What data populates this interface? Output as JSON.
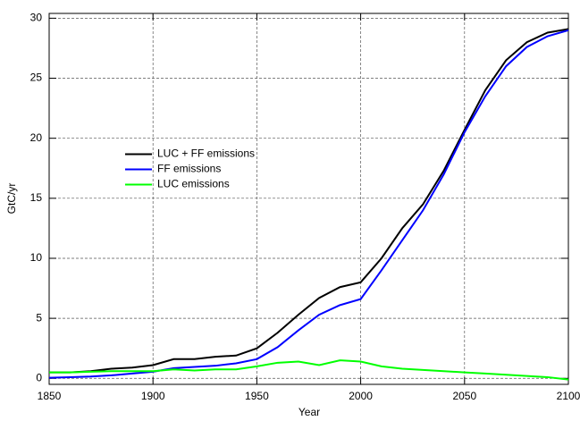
{
  "chart_data": {
    "type": "line",
    "x_label": "Year",
    "y_label": "GtC/yr",
    "x": [
      1850,
      1860,
      1870,
      1880,
      1890,
      1900,
      1910,
      1920,
      1930,
      1940,
      1950,
      1960,
      1970,
      1980,
      1990,
      2000,
      2010,
      2020,
      2030,
      2040,
      2050,
      2060,
      2070,
      2080,
      2090,
      2100
    ],
    "series": [
      {
        "name": "LUC + FF emissions",
        "color": "#000000",
        "values": [
          0.5,
          0.5,
          0.6,
          0.8,
          0.9,
          1.1,
          1.6,
          1.6,
          1.8,
          1.9,
          2.5,
          3.8,
          5.3,
          6.7,
          7.6,
          8.0,
          10.0,
          12.5,
          14.5,
          17.3,
          20.7,
          24.0,
          26.5,
          28.0,
          28.8,
          29.1
        ]
      },
      {
        "name": "FF emissions",
        "color": "#0000ff",
        "values": [
          0.05,
          0.1,
          0.15,
          0.25,
          0.4,
          0.55,
          0.85,
          0.95,
          1.05,
          1.25,
          1.6,
          2.6,
          4.0,
          5.3,
          6.1,
          6.6,
          9.0,
          11.5,
          14.0,
          17.0,
          20.5,
          23.5,
          26.0,
          27.6,
          28.5,
          29.0
        ]
      },
      {
        "name": "LUC emissions",
        "color": "#00ff00",
        "values": [
          0.5,
          0.5,
          0.55,
          0.6,
          0.6,
          0.6,
          0.75,
          0.65,
          0.75,
          0.75,
          1.0,
          1.3,
          1.4,
          1.1,
          1.5,
          1.4,
          1.0,
          0.8,
          0.7,
          0.6,
          0.5,
          0.4,
          0.3,
          0.2,
          0.1,
          -0.1
        ]
      }
    ],
    "xlim": [
      1850,
      2100
    ],
    "xticks": [
      1850,
      1900,
      1950,
      2000,
      2050,
      2100
    ],
    "ylim": [
      -0.5,
      30.4
    ],
    "yticks": [
      0,
      5,
      10,
      15,
      20,
      25,
      30
    ],
    "grid": true,
    "legend": "center left"
  }
}
